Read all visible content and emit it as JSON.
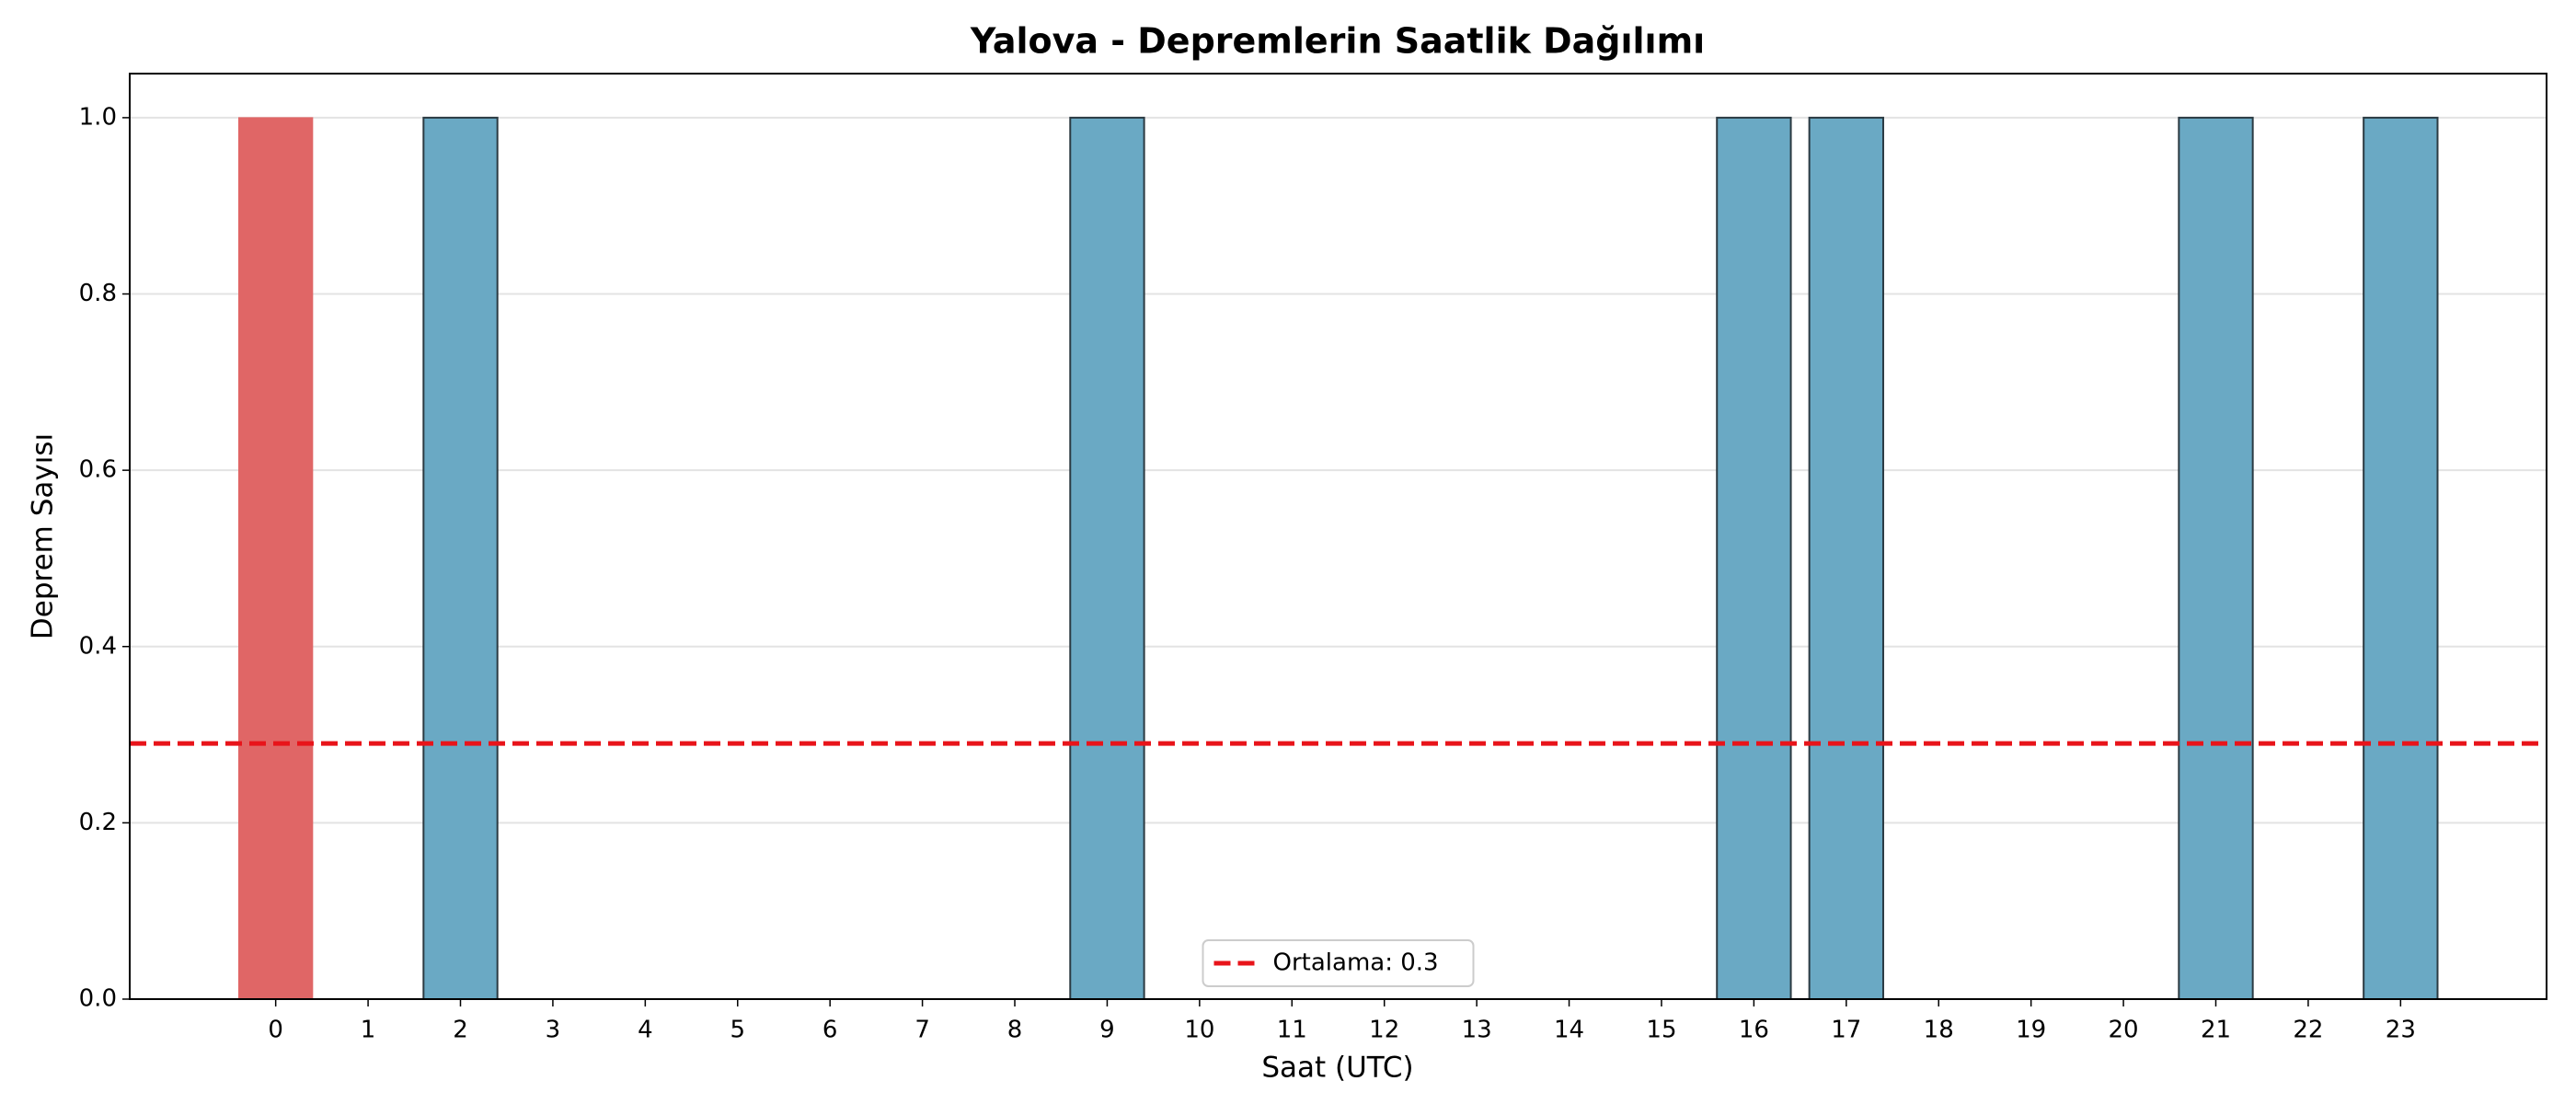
{
  "chart_data": {
    "type": "bar",
    "title": "Yalova - Depremlerin Saatlik Dağılımı",
    "x_label": "Saat (UTC)",
    "y_label": "Deprem Sayısı",
    "x": [
      0,
      1,
      2,
      3,
      4,
      5,
      6,
      7,
      8,
      9,
      10,
      11,
      12,
      13,
      14,
      15,
      16,
      17,
      18,
      19,
      20,
      21,
      22,
      23
    ],
    "values": [
      1,
      0,
      1,
      0,
      0,
      0,
      0,
      0,
      0,
      1,
      0,
      0,
      0,
      0,
      0,
      0,
      1,
      1,
      0,
      0,
      0,
      1,
      0,
      1
    ],
    "colors": [
      "#e06666",
      "#6aa9c4",
      "#6aa9c4",
      "#6aa9c4",
      "#6aa9c4",
      "#6aa9c4",
      "#6aa9c4",
      "#6aa9c4",
      "#6aa9c4",
      "#6aa9c4",
      "#6aa9c4",
      "#6aa9c4",
      "#6aa9c4",
      "#6aa9c4",
      "#6aa9c4",
      "#6aa9c4",
      "#6aa9c4",
      "#6aa9c4",
      "#6aa9c4",
      "#6aa9c4",
      "#6aa9c4",
      "#6aa9c4",
      "#6aa9c4",
      "#6aa9c4"
    ],
    "xlim": [
      -1.58,
      24.58
    ],
    "ylim": [
      0,
      1.05
    ],
    "xticks": [
      0,
      1,
      2,
      3,
      4,
      5,
      6,
      7,
      8,
      9,
      10,
      11,
      12,
      13,
      14,
      15,
      16,
      17,
      18,
      19,
      20,
      21,
      22,
      23
    ],
    "yticks": [
      {
        "value": 0,
        "label": "0.0"
      },
      0.2,
      0.4,
      0.6,
      0.8,
      {
        "value": 1,
        "label": "1.0"
      }
    ],
    "grid": true,
    "reference_line": {
      "value": 0.29,
      "label": "Ortalama: 0.3",
      "color": "#e8141a"
    },
    "legend": "lower center"
  }
}
